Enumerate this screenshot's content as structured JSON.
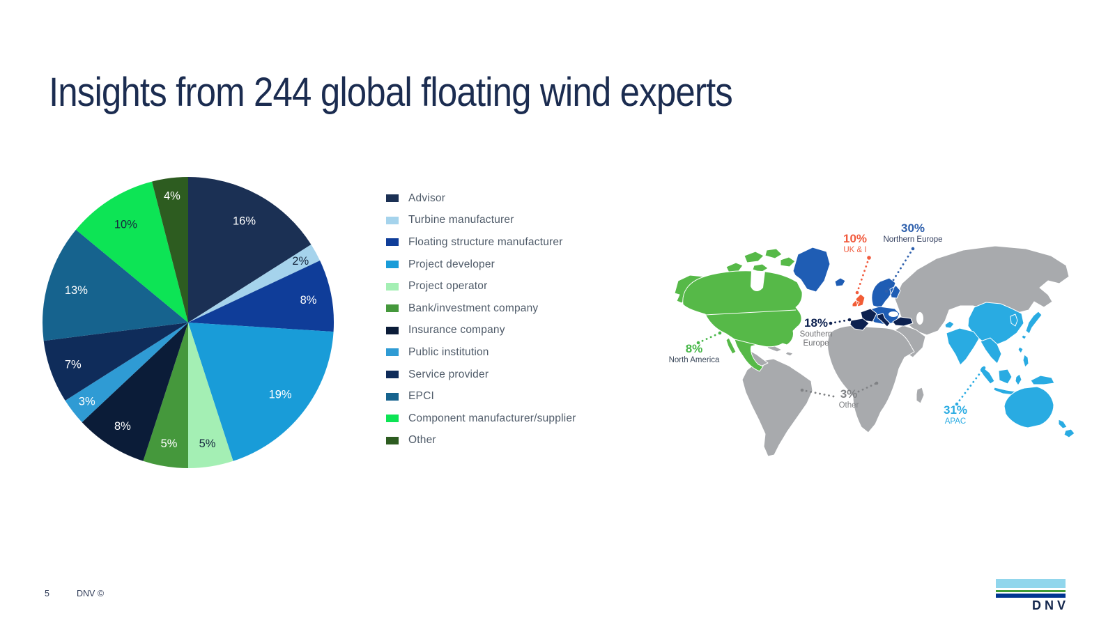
{
  "slide": {
    "title": "Insights from 244 global floating wind experts",
    "page_number": "5",
    "copyright": "DNV ©",
    "logo_text": "DNV"
  },
  "map_colors": {
    "base_land": "#a8aaad",
    "border": "#ffffff"
  },
  "chart_data": [
    {
      "type": "pie",
      "categories": [
        "Advisor",
        "Turbine manufacturer",
        "Floating structure manufacturer",
        "Project developer",
        "Project operator",
        "Bank/investment company",
        "Insurance company",
        "Public institution",
        "Service provider",
        "EPCI",
        "Component manufacturer/supplier",
        "Other"
      ],
      "values": [
        16,
        2,
        8,
        19,
        5,
        5,
        8,
        3,
        7,
        13,
        10,
        4
      ],
      "unit": "%",
      "colors": [
        "#1b3054",
        "#a5d3ec",
        "#0f3d99",
        "#199cd8",
        "#a4efb4",
        "#45983c",
        "#0b1c38",
        "#2f9bd4",
        "#0f2c5a",
        "#16638e",
        "#0de455",
        "#2d5c20"
      ],
      "start_angle_deg": 0,
      "direction": "clockwise",
      "legend_position": "right",
      "data_labels": "percent-inside"
    },
    {
      "type": "map",
      "regions": [
        {
          "name": "Northern Europe",
          "value": 30,
          "pct_label": "30%",
          "pct_color": "#2d5fac",
          "name_color": "#303c5c",
          "map_color": "#1f5db4"
        },
        {
          "name": "UK & I",
          "value": 10,
          "pct_label": "10%",
          "pct_color": "#f15b3e",
          "name_color": "#f15b3e",
          "map_color": "#f25c35"
        },
        {
          "name": "Southern Europe",
          "value": 18,
          "pct_label": "18%",
          "pct_color": "#0d2150",
          "name_color": "#6d6e71",
          "map_color": "#0c2150"
        },
        {
          "name": "North America",
          "value": 8,
          "pct_label": "8%",
          "pct_color": "#48b749",
          "name_color": "#3d4a5c",
          "map_color": "#56b948"
        },
        {
          "name": "Other",
          "value": 3,
          "pct_label": "3%",
          "pct_color": "#808285",
          "name_color": "#808285",
          "map_color": "#a8aaad"
        },
        {
          "name": "APAC",
          "value": 31,
          "pct_label": "31%",
          "pct_color": "#29abe2",
          "name_color": "#29abe2",
          "map_color": "#29abe2"
        }
      ]
    }
  ]
}
